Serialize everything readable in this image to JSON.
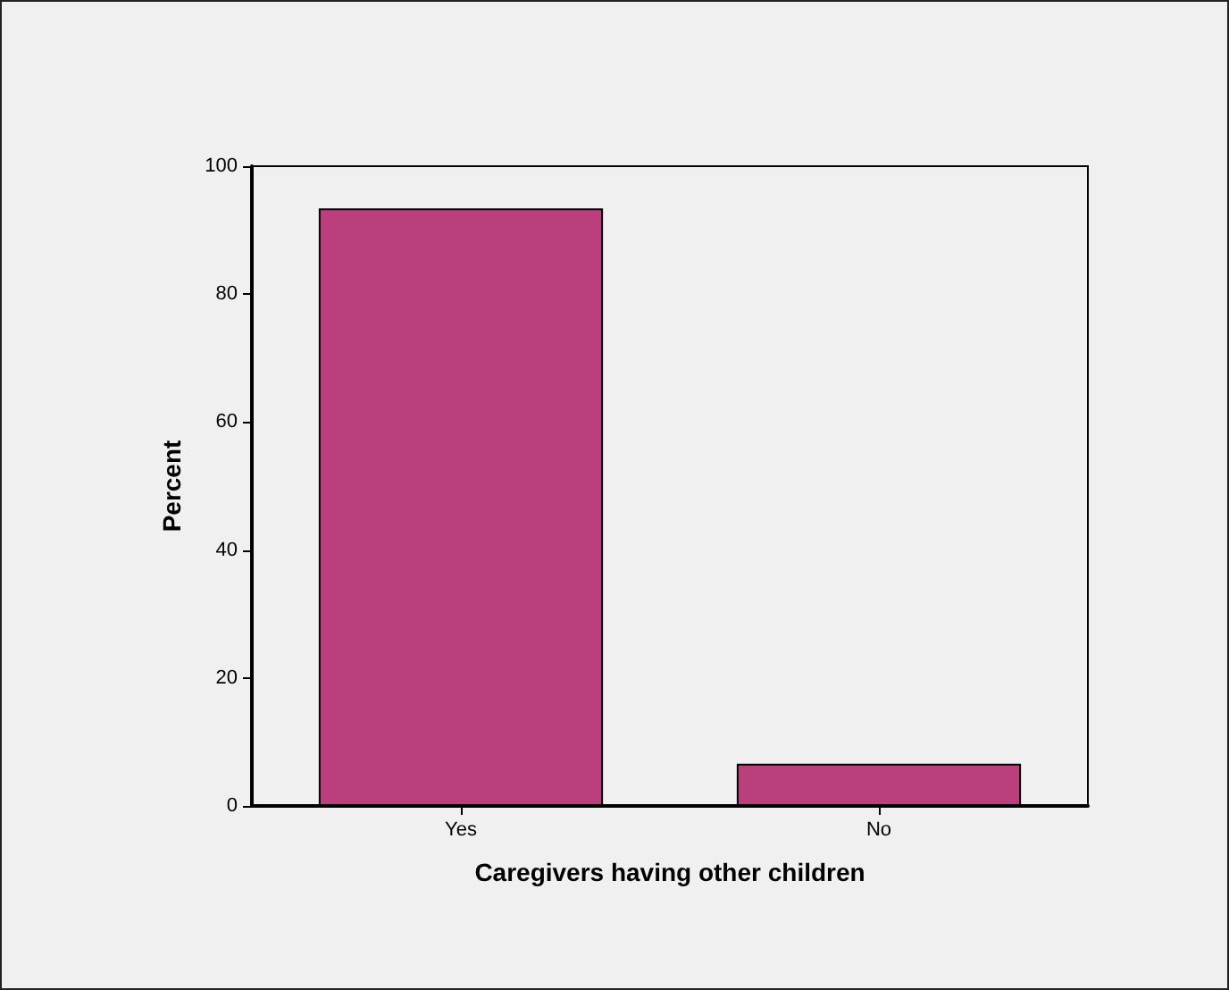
{
  "chart_data": {
    "type": "bar",
    "xlabel": "Caregivers having other children",
    "ylabel": "Percent",
    "categories": [
      "Yes",
      "No"
    ],
    "values": [
      93.4,
      6.6
    ],
    "color": "#bb3f7d",
    "ylim": [
      0,
      100
    ],
    "yticks": [
      0,
      20,
      40,
      60,
      80,
      100
    ],
    "grid": false
  }
}
